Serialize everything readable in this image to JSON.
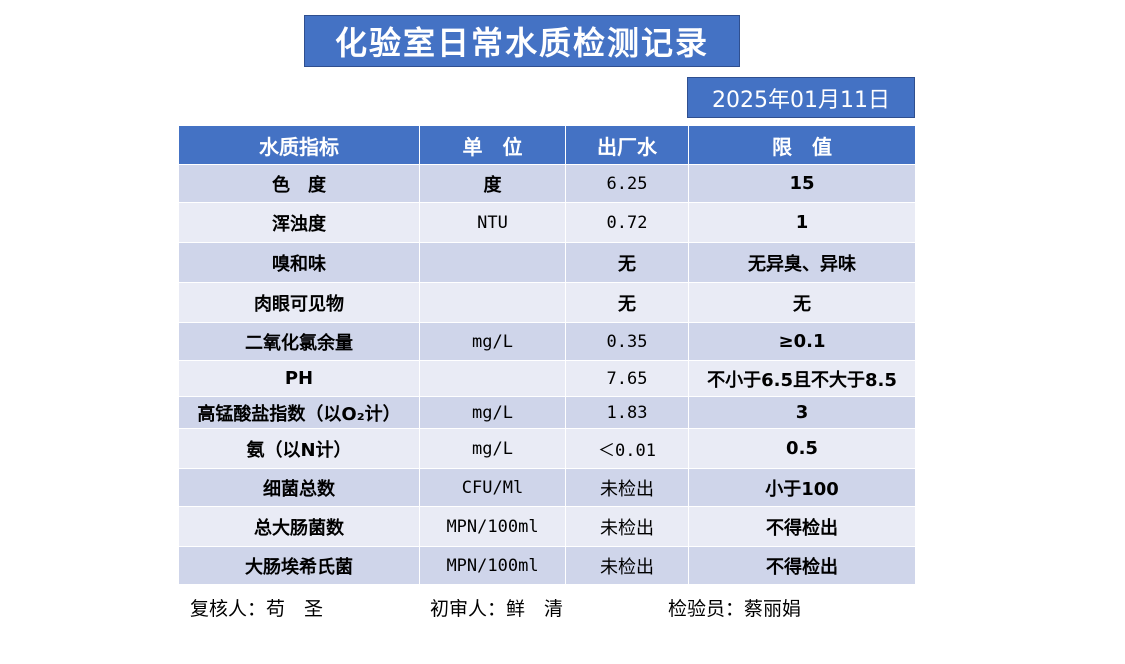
{
  "title": "化验室日常水质检测记录",
  "date": "2025年01月11日",
  "table": {
    "headers": [
      "水质指标",
      "单　位",
      "出厂水",
      "限　值"
    ],
    "rows": [
      {
        "indicator": "色　度",
        "unit": "度",
        "value": "6.25",
        "limit": "15"
      },
      {
        "indicator": "浑浊度",
        "unit": "NTU",
        "value": "0.72",
        "limit": "1"
      },
      {
        "indicator": "嗅和味",
        "unit": "",
        "value": "无",
        "limit": "无异臭、异味"
      },
      {
        "indicator": "肉眼可见物",
        "unit": "",
        "value": "无",
        "limit": "无"
      },
      {
        "indicator": "二氧化氯余量",
        "unit": "mg/L",
        "value": "0.35",
        "limit": "≥0.1"
      },
      {
        "indicator": "PH",
        "unit": "",
        "value": "7.65",
        "limit": "不小于6.5且不大于8.5"
      },
      {
        "indicator": "高锰酸盐指数（以O₂计）",
        "unit": "mg/L",
        "value": "1.83",
        "limit": "3"
      },
      {
        "indicator": "氨（以N计）",
        "unit": "mg/L",
        "value": "＜0.01",
        "limit": "0.5"
      },
      {
        "indicator": "细菌总数",
        "unit": "CFU/Ml",
        "value": "未检出",
        "limit": "小于100"
      },
      {
        "indicator": "总大肠菌数",
        "unit": "MPN/100ml",
        "value": "未检出",
        "limit": "不得检出"
      },
      {
        "indicator": "大肠埃希氏菌",
        "unit": "MPN/100ml",
        "value": "未检出",
        "limit": "不得检出"
      }
    ]
  },
  "footer": {
    "reviewer": "复核人：苟　圣",
    "first_reviewer": "初审人：鲜　清",
    "inspector": "检验员：蔡丽娟"
  }
}
